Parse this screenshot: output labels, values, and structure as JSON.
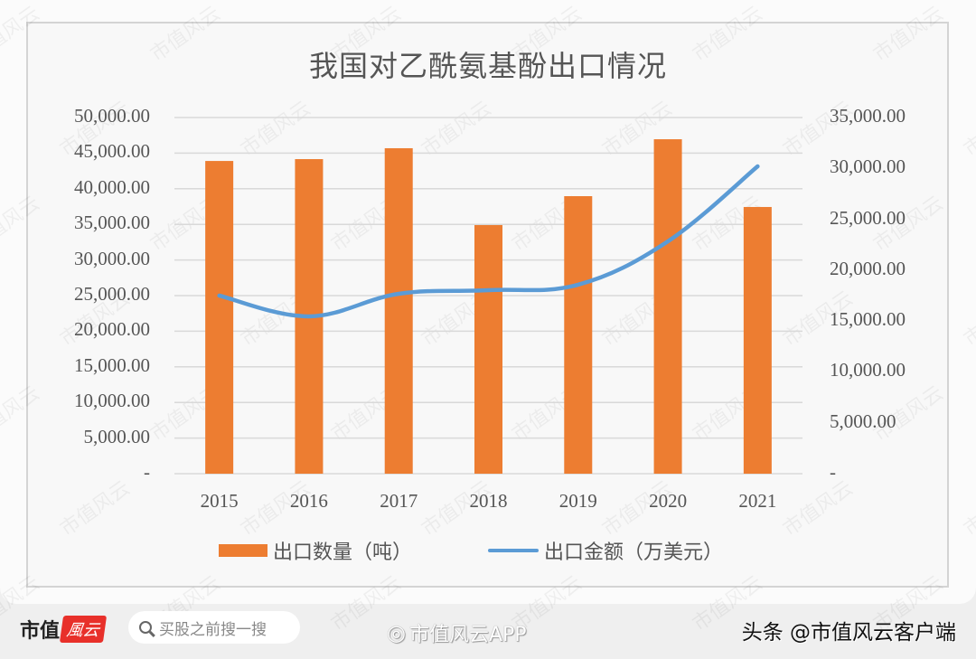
{
  "chart_data": {
    "type": "bar+line",
    "title": "我国对乙酰氨基酚出口情况",
    "categories": [
      "2015",
      "2016",
      "2017",
      "2018",
      "2019",
      "2020",
      "2021"
    ],
    "series": [
      {
        "name": "出口数量（吨）",
        "type": "bar",
        "axis": "left",
        "color": "#ed7d31",
        "values": [
          43900,
          44160,
          45690,
          34900,
          38960,
          46950,
          37440
        ]
      },
      {
        "name": "出口金额（万美元）",
        "type": "line",
        "axis": "right",
        "color": "#5b9bd5",
        "values": [
          17500,
          15460,
          17680,
          18030,
          18570,
          22830,
          30200
        ]
      }
    ],
    "left_axis": {
      "range": [
        0,
        50000
      ],
      "ticks": [
        "50,000.00",
        "45,000.00",
        "40,000.00",
        "35,000.00",
        "30,000.00",
        "25,000.00",
        "20,000.00",
        "15,000.00",
        "10,000.00",
        "5,000.00",
        "-"
      ]
    },
    "right_axis": {
      "range": [
        0,
        35000
      ],
      "ticks": [
        "35,000.00",
        "30,000.00",
        "25,000.00",
        "20,000.00",
        "15,000.00",
        "10,000.00",
        "5,000.00",
        "-"
      ]
    },
    "grid": true,
    "legend_position": "bottom"
  },
  "title": "我国对乙酰氨基酚出口情况",
  "legend": {
    "bar_label": "出口数量（吨）",
    "line_label": "出口金额（万美元）"
  },
  "footer": {
    "brand_text": "市值",
    "brand_badge": "風云",
    "search_placeholder": "买股之前搜一搜",
    "weibo_text": "市值风云APP",
    "toutiao_text": "头条 @市值风云客户端"
  },
  "watermark": "市值风云"
}
